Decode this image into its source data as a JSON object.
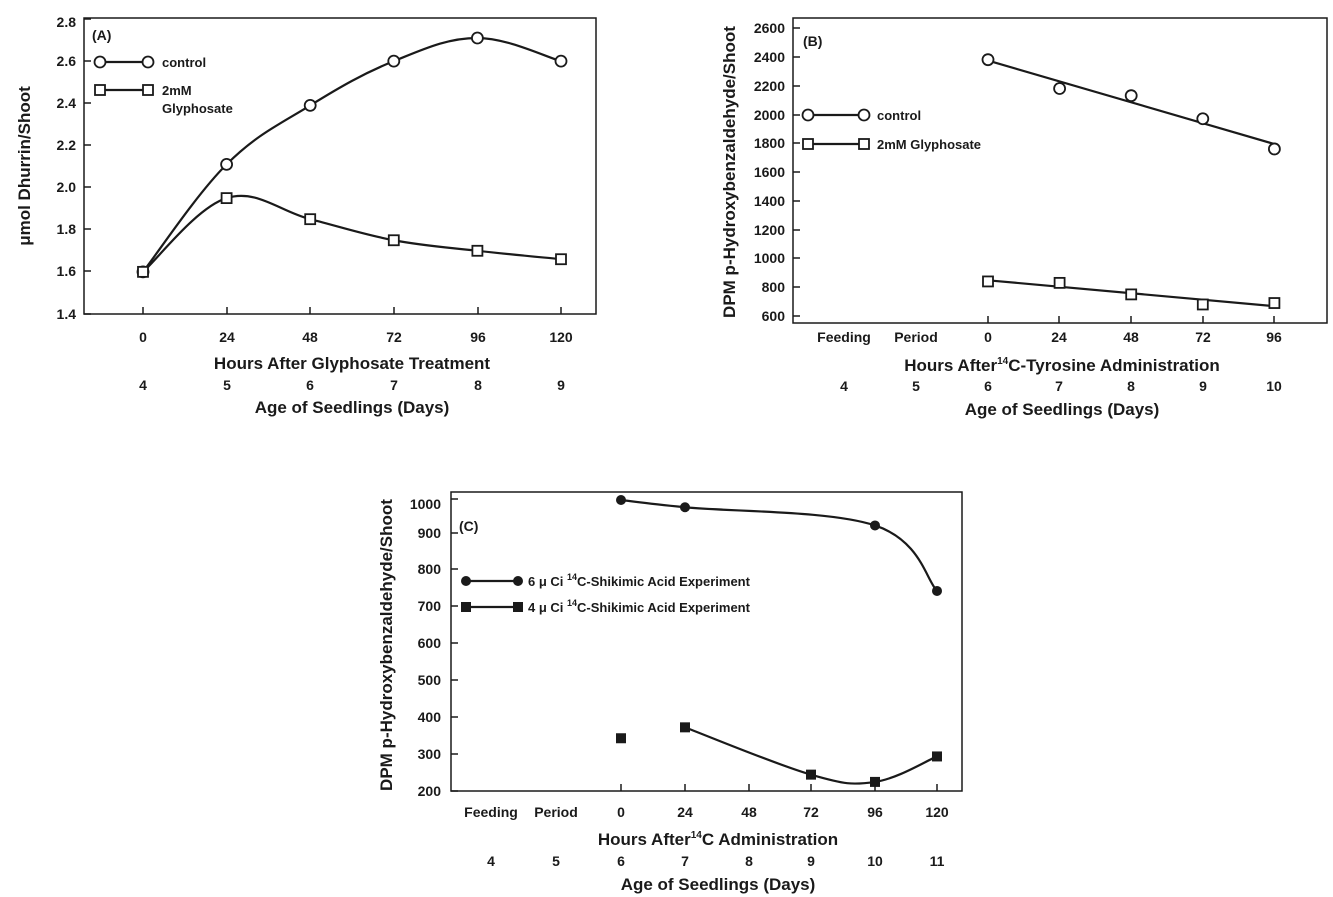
{
  "chart_data": [
    {
      "type": "line",
      "panel_label": "(A)",
      "xlabel": "Hours After Glyphosate Treatment",
      "x2label": "Age of Seedlings (Days)",
      "ylabel": "μmol Dhurrin/Shoot",
      "x_ticks": [
        "0",
        "24",
        "48",
        "72",
        "96",
        "120"
      ],
      "x2_ticks": [
        "4",
        "5",
        "6",
        "7",
        "8",
        "9"
      ],
      "y_ticks": [
        "1.4",
        "1.6",
        "1.8",
        "2.0",
        "2.2",
        "2.4",
        "2.6",
        "2.8"
      ],
      "ylim": [
        1.4,
        2.8
      ],
      "xlim": [
        -24,
        132
      ],
      "x": [
        0,
        24,
        48,
        72,
        96,
        120
      ],
      "series": [
        {
          "name": "control",
          "marker": "open-circle",
          "values": [
            1.6,
            2.11,
            2.39,
            2.6,
            2.71,
            2.6
          ]
        },
        {
          "name": "2mM Glyphosate",
          "marker": "open-square",
          "values": [
            1.6,
            1.95,
            1.85,
            1.75,
            1.7,
            1.66
          ]
        }
      ],
      "legend_placement": "top-left"
    },
    {
      "type": "line",
      "panel_label": "(B)",
      "xlabel_pre": "Hours After",
      "xlabel_sup": "14",
      "xlabel_post": "C-Tyrosine Administration",
      "x2label": "Age of Seedlings (Days)",
      "ylabel": "DPM p-Hydroxybenzaldehyde/Shoot",
      "x_ticks": [
        "Feeding",
        "Period",
        "0",
        "24",
        "48",
        "72",
        "96"
      ],
      "x2_ticks": [
        "4",
        "5",
        "6",
        "7",
        "8",
        "9",
        "10"
      ],
      "y_ticks": [
        "600",
        "800",
        "1000",
        "1200",
        "1400",
        "1600",
        "1800",
        "2000",
        "2200",
        "2400",
        "2600"
      ],
      "ylim": [
        600,
        2600
      ],
      "x": [
        0,
        24,
        48,
        72,
        96
      ],
      "series": [
        {
          "name": "control",
          "marker": "open-circle",
          "values": [
            2380,
            2180,
            2130,
            1970,
            1760
          ]
        },
        {
          "name": "2mM Glyphosate",
          "marker": "open-square",
          "values": [
            840,
            830,
            750,
            680,
            690
          ]
        }
      ],
      "legend_placement": "top-left"
    },
    {
      "type": "line",
      "panel_label": "(C)",
      "xlabel_pre": "Hours After",
      "xlabel_sup": "14",
      "xlabel_post": "C Administration",
      "x2label": "Age of Seedlings (Days)",
      "ylabel": "DPM p-Hydroxybenzaldehyde/Shoot",
      "x_ticks": [
        "Feeding",
        "Period",
        "0",
        "24",
        "48",
        "72",
        "96",
        "120"
      ],
      "x2_ticks": [
        "4",
        "5",
        "6",
        "7",
        "8",
        "9",
        "10",
        "11"
      ],
      "y_ticks": [
        "200",
        "300",
        "400",
        "500",
        "600",
        "700",
        "800",
        "900",
        "1000"
      ],
      "ylim": [
        200,
        1000
      ],
      "x": [
        0,
        24,
        72,
        96,
        120
      ],
      "series": [
        {
          "name_pre": "6 μ Ci ",
          "name_sup": "14",
          "name_post": "C-Shikimic Acid Experiment",
          "marker": "filled-circle",
          "values": [
            1000,
            980,
            null,
            930,
            750
          ]
        },
        {
          "name_pre": "4 μ Ci ",
          "name_sup": "14",
          "name_post": "C-Shikimic Acid Experiment",
          "marker": "filled-square",
          "values": [
            345,
            375,
            245,
            225,
            295
          ]
        }
      ],
      "legend_placement": "upper-left"
    }
  ]
}
